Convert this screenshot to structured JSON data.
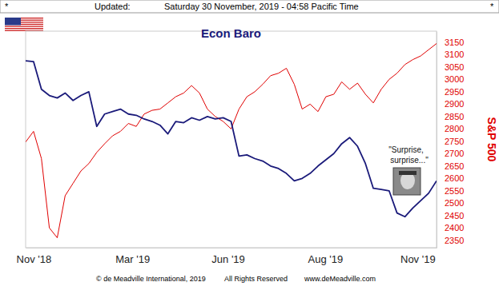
{
  "header": {
    "left_mark": "*",
    "label": "Updated:",
    "timestamp": "Saturday 30 November, 2019 - 04:58 Pacific Time",
    "right_mark": "*"
  },
  "chart_data": {
    "type": "line",
    "x": [
      0,
      1,
      2,
      3,
      4,
      5,
      6,
      7,
      8,
      9,
      10,
      11,
      12,
      13,
      14,
      15,
      16,
      17,
      18,
      19,
      20,
      21,
      22,
      23,
      24,
      25,
      26,
      27,
      28,
      29,
      30,
      31,
      32,
      33,
      34,
      35,
      36,
      37,
      38,
      39,
      40,
      41,
      42,
      43,
      44,
      45,
      46,
      47,
      48,
      49,
      50,
      51,
      52
    ],
    "xlim": [
      0,
      52
    ],
    "xticks": [
      {
        "value": 1,
        "label": "Nov '18"
      },
      {
        "value": 13.5,
        "label": "Mar '19"
      },
      {
        "value": 25.6,
        "label": "Jun '19"
      },
      {
        "value": 37.9,
        "label": "Aug '19"
      },
      {
        "value": 49.6,
        "label": "Nov '19"
      }
    ],
    "ylim": [
      2320,
      3195
    ],
    "yticks": [
      2350,
      2400,
      2450,
      2500,
      2550,
      2600,
      2650,
      2700,
      2750,
      2800,
      2850,
      2900,
      2950,
      3000,
      3050,
      3100,
      3150
    ],
    "series": [
      {
        "name": "S&P 500",
        "color": "#e00000",
        "values": [
          2747,
          2790,
          2680,
          2400,
          2360,
          2530,
          2580,
          2630,
          2660,
          2705,
          2740,
          2772,
          2790,
          2822,
          2810,
          2860,
          2875,
          2880,
          2905,
          2930,
          2945,
          2975,
          2945,
          2880,
          2850,
          2830,
          2800,
          2880,
          2930,
          2950,
          2980,
          3015,
          3025,
          3045,
          2980,
          2880,
          2900,
          2870,
          2930,
          2940,
          2990,
          2960,
          2985,
          2940,
          2905,
          2960,
          3000,
          3025,
          3060,
          3080,
          3095,
          3120,
          3145
        ]
      },
      {
        "name": "Econ Baro",
        "color": "#1a1a7a",
        "values": [
          3075,
          3072,
          2960,
          2935,
          2925,
          2945,
          2915,
          2935,
          2950,
          2810,
          2860,
          2870,
          2880,
          2860,
          2855,
          2840,
          2830,
          2815,
          2780,
          2830,
          2825,
          2845,
          2835,
          2850,
          2840,
          2845,
          2830,
          2690,
          2695,
          2680,
          2670,
          2650,
          2640,
          2620,
          2590,
          2600,
          2620,
          2650,
          2675,
          2700,
          2740,
          2765,
          2730,
          2660,
          2560,
          2555,
          2550,
          2460,
          2445,
          2480,
          2510,
          2540,
          2590
        ]
      }
    ],
    "annotation": [
      "\"Surprise,",
      "surprise...\""
    ]
  },
  "footer": {
    "copyright": "© de Meadville International, 2019",
    "rights": "All Rights Reserved",
    "website": "www.deMeadville.com"
  }
}
